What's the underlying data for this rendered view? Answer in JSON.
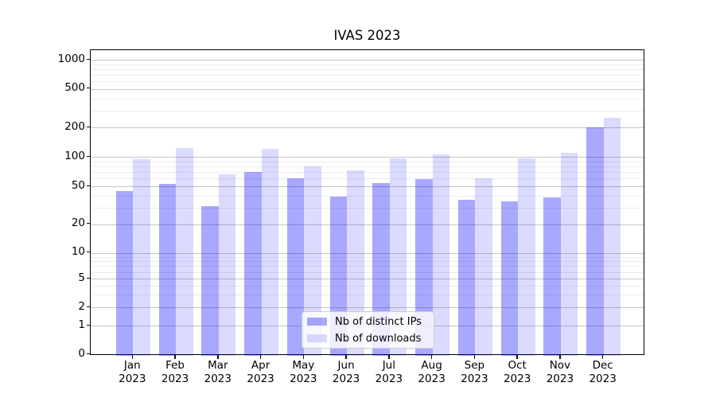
{
  "chart_data": {
    "type": "bar",
    "title": "IVAS 2023",
    "categories": [
      "Jan 2023",
      "Feb 2023",
      "Mar 2023",
      "Apr 2023",
      "May 2023",
      "Jun 2023",
      "Jul 2023",
      "Aug 2023",
      "Sep 2023",
      "Oct 2023",
      "Nov 2023",
      "Dec 2023"
    ],
    "series": [
      {
        "name": "Nb of distinct IPs",
        "color": "#0000FF57",
        "values": [
          45,
          53,
          31,
          70,
          61,
          39,
          54,
          59,
          36,
          35,
          38,
          200
        ]
      },
      {
        "name": "Nb of downloads",
        "color": "#0000FF24",
        "values": [
          94,
          124,
          66,
          121,
          80,
          73,
          96,
          106,
          60,
          97,
          110,
          250
        ]
      }
    ],
    "y_axis": {
      "scale": "log-like with zero baseline",
      "ticks": [
        0,
        1,
        2,
        5,
        10,
        20,
        50,
        100,
        200,
        500,
        1000
      ],
      "range": [
        0,
        1250
      ]
    },
    "x_axis": {
      "tick_label_lines": 2
    },
    "legend": {
      "position": "lower center"
    },
    "grid": "horizontal major and minor gridlines",
    "xlabel": "",
    "ylabel": ""
  }
}
